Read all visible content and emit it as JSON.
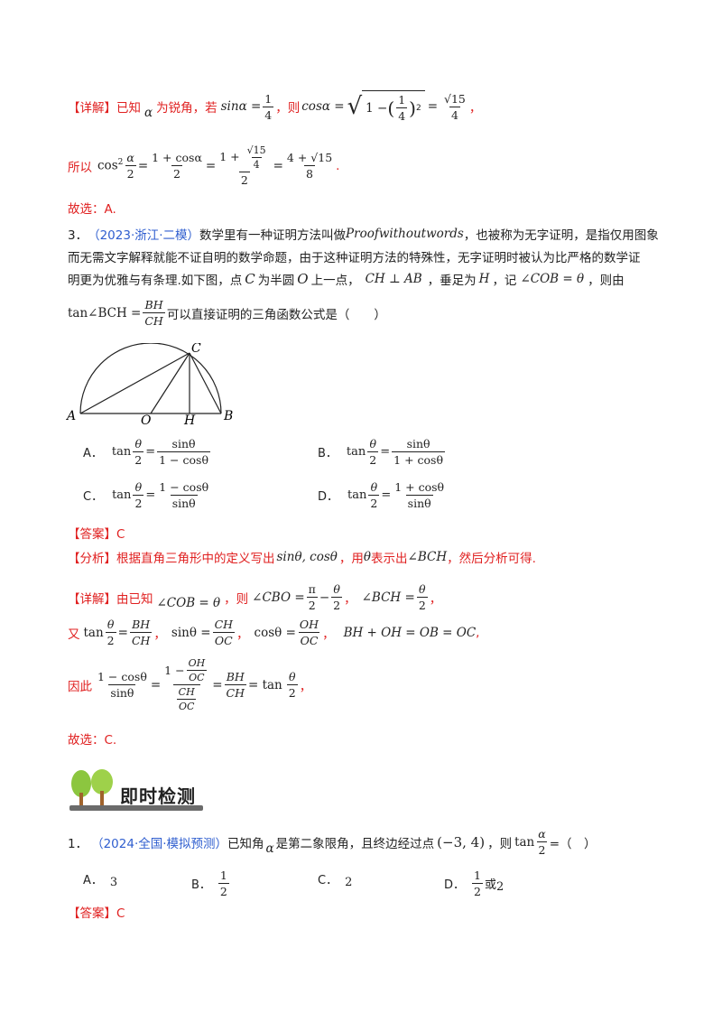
{
  "sol2": {
    "detail_tag": "【详解】",
    "detail_a": "已知",
    "detail_b": "为锐角，若",
    "detail_c": "，则",
    "detail_end": "，",
    "sin_alpha": "sinα =",
    "sin_num": "1",
    "sin_den": "4",
    "cos_alpha": "cosα =",
    "sqrt_inner": "1 −",
    "cos_num": "√15",
    "cos_den": "4",
    "so_text": "所以",
    "cos2_expr": "cos² α/2 =",
    "so_f1_num": "1 + cosα",
    "so_f1_den": "2",
    "so_f2_num": "1 + √15/4",
    "so_f2_den": "2",
    "so_f3_num": "4 + √15",
    "so_f3_den": "8",
    "choose": "故选：A."
  },
  "q3": {
    "num": "3．",
    "source": "（2023·浙江·二模）",
    "text1": "数学里有一种证明方法叫做",
    "ital": "Proofwithoutwords",
    "text2": "，也被称为无字证明，是指仅用图象",
    "line2": "而无需文字解释就能不证自明的数学命题，由于这种证明方法的特殊性，无字证明时被认为比严格的数学证",
    "line3a": "明更为优雅与有条理.如下图，点",
    "line3b": "为半圆",
    "line3c": "上一点，",
    "line3d": "，垂足为",
    "line3e": "，记",
    "line3f": "，则由",
    "C": "C",
    "O": "O",
    "perp": "CH ⊥ AB",
    "H": "H",
    "angle": "∠COB = θ",
    "tan_expr": "tan∠BCH =",
    "tan_num": "BH",
    "tan_den": "CH",
    "line4": "可以直接证明的三角函数公式是（　　）",
    "fig_labels": [
      "A",
      "O",
      "H",
      "B",
      "C"
    ],
    "options": [
      {
        "label": "A．",
        "lhs_num": "θ",
        "lhs_den": "2",
        "num": "sinθ",
        "den": "1 − cosθ"
      },
      {
        "label": "B．",
        "lhs_num": "θ",
        "lhs_den": "2",
        "num": "sinθ",
        "den": "1 + cosθ"
      },
      {
        "label": "C．",
        "lhs_num": "θ",
        "lhs_den": "2",
        "num": "1 − cosθ",
        "den": "sinθ"
      },
      {
        "label": "D．",
        "lhs_num": "θ",
        "lhs_den": "2",
        "num": "1 + cosθ",
        "den": "sinθ"
      }
    ],
    "tan_word": "tan",
    "answer_tag": "【答案】",
    "answer": "C",
    "analysis_tag": "【分析】",
    "analysis_a": "根据直角三角形中的定义写出",
    "analysis_math": "sinθ, cosθ",
    "analysis_b": "，用",
    "analysis_theta": "θ",
    "analysis_c": "表示出",
    "analysis_angle": "∠BCH",
    "analysis_d": "，然后分析可得.",
    "detail_tag": "【详解】",
    "detail_a": "由已知",
    "detail_angle": "∠COB = θ",
    "detail_b": "，则",
    "cbo": "∠CBO =",
    "pi": "π",
    "two": "2",
    "minus": "−",
    "theta": "θ",
    "comma": "，",
    "bch": "∠BCH =",
    "you": "又",
    "eq_bh": "BH",
    "eq_ch": "CH",
    "sin_eq": "sinθ =",
    "cos_eq": "cosθ =",
    "oc": "OC",
    "oh": "OH",
    "sum_eq": "BH + OH = OB = OC",
    "therefore": "因此",
    "t_num": "1 − cosθ",
    "t_den": "sinθ",
    "t_mid_num_a": "1 −",
    "tan_theta2": "= tan",
    "choose": "故选：C."
  },
  "section": {
    "title": "即时检测"
  },
  "q1": {
    "num": "1．",
    "source": "（2024·全国·模拟预测）",
    "text1": "已知角",
    "alpha": "α",
    "text2": "是第二象限角，且终边经过点",
    "point": "(−3, 4)",
    "text3": "，则",
    "tan": "tan",
    "tail": "=（　）",
    "options": [
      {
        "label": "A．",
        "value": "3"
      },
      {
        "label": "B．",
        "value_num": "1",
        "value_den": "2"
      },
      {
        "label": "C．",
        "value": "2"
      },
      {
        "label": "D．",
        "value_num": "1",
        "value_den": "2",
        "suffix": "或",
        "extra": "2"
      }
    ],
    "answer_tag": "【答案】",
    "answer": "C"
  }
}
